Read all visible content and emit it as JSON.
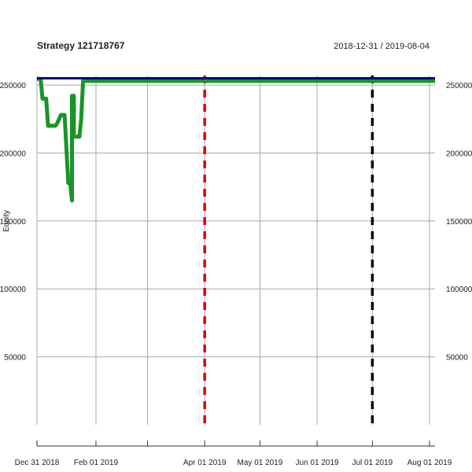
{
  "chart_data": {
    "type": "line",
    "title": "Strategy 121718767",
    "date_range": "2018-12-31 / 2019-08-04",
    "xlabel": "",
    "ylabel": "Equity",
    "x_ticks": [
      {
        "date": "2018-12-31",
        "label": "Dec 31 2018"
      },
      {
        "date": "2019-02-01",
        "label": "Feb 01 2019"
      },
      {
        "date": "2019-03-01",
        "label": ""
      },
      {
        "date": "2019-04-01",
        "label": "Apr 01 2019"
      },
      {
        "date": "2019-05-01",
        "label": "May 01 2019"
      },
      {
        "date": "2019-06-01",
        "label": "Jun 01 2019"
      },
      {
        "date": "2019-07-01",
        "label": "Jul 01 2019"
      },
      {
        "date": "2019-08-01",
        "label": "Aug 01 2019"
      }
    ],
    "y_ticks": [
      50000,
      100000,
      150000,
      200000,
      250000
    ],
    "xlim": [
      "2018-12-31",
      "2019-08-04"
    ],
    "ylim": [
      0,
      257000
    ],
    "grid": true,
    "series": [
      {
        "color": "#1a9428",
        "x": [
          "2018-12-31",
          "2019-01-01",
          "2019-01-02",
          "2019-01-03",
          "2019-01-05",
          "2019-01-06",
          "2019-01-07",
          "2019-01-10",
          "2019-01-11",
          "2019-01-13",
          "2019-01-14",
          "2019-01-15",
          "2019-01-17",
          "2019-01-18",
          "2019-01-19",
          "2019-01-19",
          "2019-01-20",
          "2019-01-20",
          "2019-01-21",
          "2019-01-22",
          "2019-01-23",
          "2019-01-24",
          "2019-01-25",
          "2019-01-26",
          "2019-01-27",
          "2019-01-28",
          "2019-01-29",
          "2019-01-30",
          "2019-08-04"
        ],
        "y": [
          254500,
          254500,
          254500,
          240000,
          240000,
          220000,
          220000,
          220000,
          222000,
          228000,
          228000,
          228000,
          178000,
          178000,
          165000,
          242000,
          242000,
          212000,
          212000,
          212000,
          212000,
          225000,
          253000,
          253000,
          253000,
          253000,
          253000,
          253000,
          253000
        ]
      },
      {
        "color": "#000080",
        "x": [
          "2018-12-31",
          "2019-08-04"
        ],
        "y": [
          255000,
          255000
        ]
      }
    ],
    "vlines": [
      {
        "date": "2019-04-01",
        "color": "#e00000",
        "style": "dashed"
      },
      {
        "date": "2019-07-01",
        "color": "#000000",
        "style": "dashed"
      }
    ]
  }
}
